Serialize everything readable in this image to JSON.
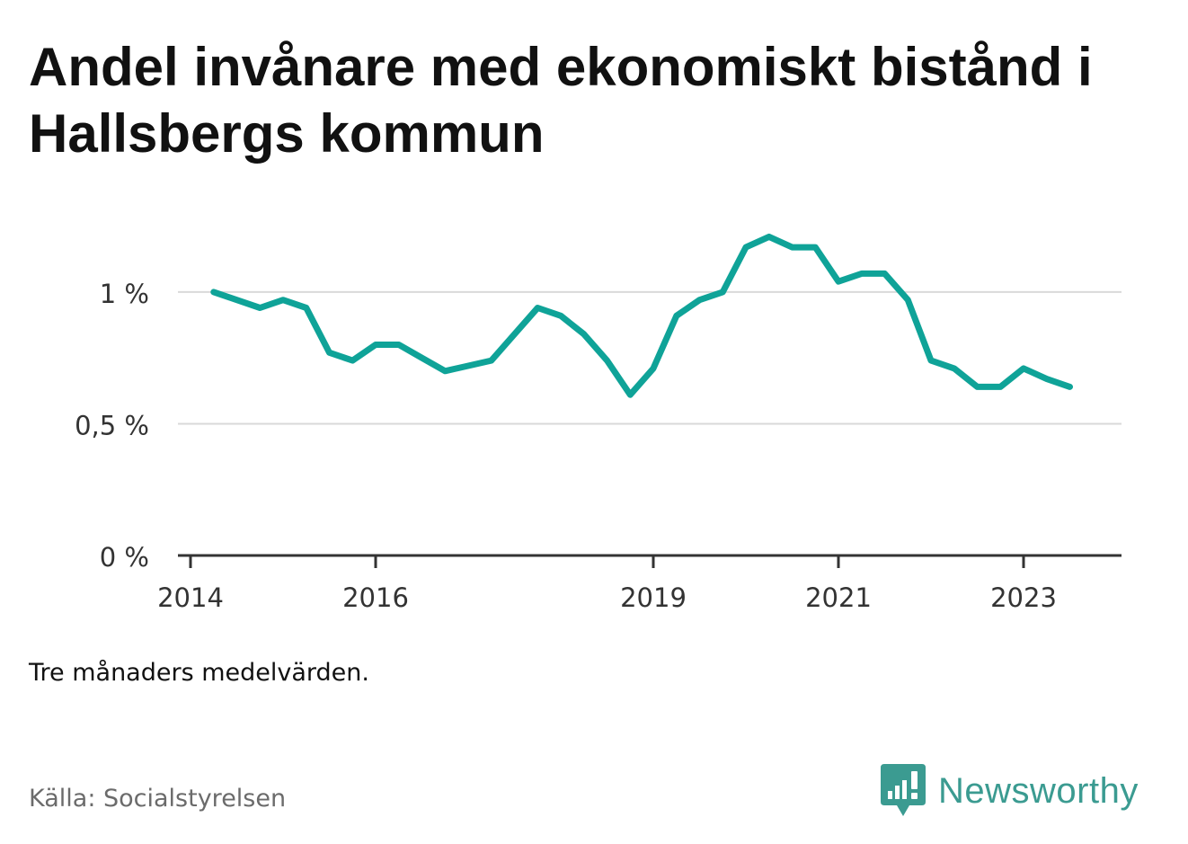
{
  "title": "Andel invånare med ekonomiskt bistånd i Hallsbergs kommun",
  "note": "Tre månaders medelvärden.",
  "source": "Källa: Socialstyrelsen",
  "brand": {
    "name": "Newsworthy"
  },
  "colors": {
    "line": "#0fa398",
    "grid": "#d9d9d9",
    "axis": "#333333",
    "brand": "#3b9b91"
  },
  "chart_data": {
    "type": "line",
    "y_ticks": [
      "0 %",
      "0,5 %",
      "1 %"
    ],
    "x_ticks": [
      "2014",
      "2016",
      "2019",
      "2021",
      "2023"
    ],
    "ylim": [
      0,
      1.3
    ],
    "grid": true,
    "series": [
      {
        "values": [
          1.0,
          0.97,
          0.94,
          0.97,
          0.94,
          0.77,
          0.74,
          0.8,
          0.8,
          0.75,
          0.7,
          0.72,
          0.74,
          0.84,
          0.94,
          0.91,
          0.84,
          0.74,
          0.61,
          0.71,
          0.91,
          0.97,
          1.0,
          1.17,
          1.21,
          1.17,
          1.17,
          1.04,
          1.07,
          1.07,
          0.97,
          0.74,
          0.71,
          0.64,
          0.64,
          0.71,
          0.67,
          0.64
        ],
        "x_start": "2014-04",
        "x_step": "3 months"
      }
    ]
  }
}
